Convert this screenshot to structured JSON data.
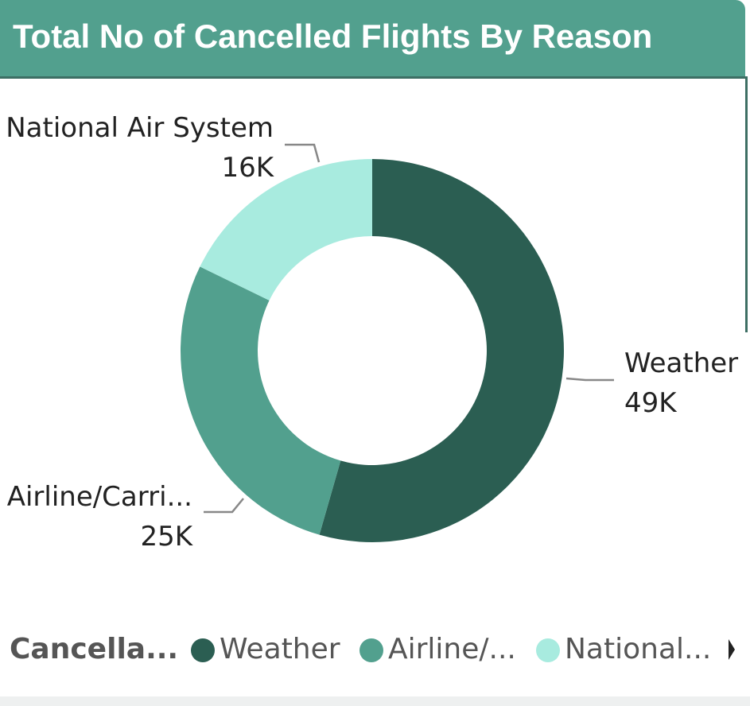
{
  "chart_data": {
    "type": "pie",
    "variant": "donut",
    "title": "Total No of Cancelled Flights By Reason",
    "legend_title": "Cancella...",
    "legend_position": "bottom-left",
    "slices": [
      {
        "name": "Weather",
        "legend_label": "Weather",
        "slice_label": "Weather",
        "value": 49,
        "value_label": "49K",
        "color": "#2b5e52"
      },
      {
        "name": "Airline/Carrier",
        "legend_label": "Airline/...",
        "slice_label": "Airline/Carri...",
        "value": 25,
        "value_label": "25K",
        "color": "#52a08e"
      },
      {
        "name": "National Air System",
        "legend_label": "National...",
        "slice_label": "National Air System",
        "value": 16,
        "value_label": "16K",
        "color": "#a8ebdf"
      }
    ]
  },
  "colors": {
    "header": "#52a08e",
    "title_text": "#ffffff",
    "leader_line": "#888888"
  }
}
